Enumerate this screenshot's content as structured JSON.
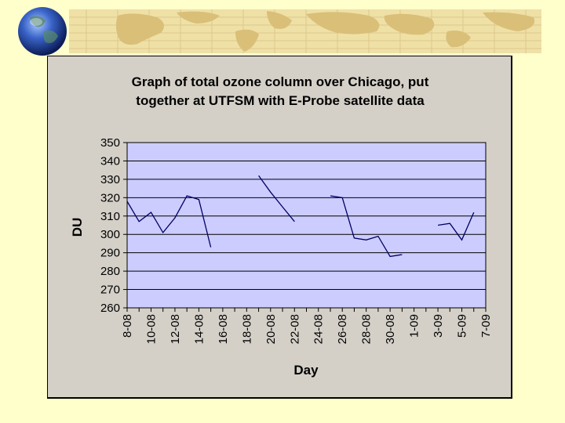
{
  "chart_data": {
    "type": "line",
    "title_lines": [
      "Graph of total ozone column over Chicago, put",
      "together at UTFSM with E-Probe satellite data"
    ],
    "xlabel": "Day",
    "ylabel": "DU",
    "ylim": [
      260,
      350
    ],
    "y_ticks": [
      260,
      270,
      280,
      290,
      300,
      310,
      320,
      330,
      340,
      350
    ],
    "x_categories": [
      "8-08",
      "9-08",
      "10-08",
      "11-08",
      "12-08",
      "13-08",
      "14-08",
      "15-08",
      "16-08",
      "17-08",
      "18-08",
      "19-08",
      "20-08",
      "21-08",
      "22-08",
      "23-08",
      "24-08",
      "25-08",
      "26-08",
      "27-08",
      "28-08",
      "29-08",
      "30-08",
      "31-08",
      "1-09",
      "2-09",
      "3-09",
      "4-09",
      "5-09",
      "6-09",
      "7-09"
    ],
    "x_tick_labels": [
      "8-08",
      "10-08",
      "12-08",
      "14-08",
      "16-08",
      "18-08",
      "20-08",
      "22-08",
      "24-08",
      "26-08",
      "28-08",
      "30-08",
      "1-09",
      "3-09",
      "5-09",
      "7-09"
    ],
    "grid": true,
    "series": [
      {
        "color": "#000066",
        "values": [
          318,
          307,
          312,
          301,
          309,
          321,
          319,
          293,
          null,
          null,
          null,
          332,
          323,
          315,
          307,
          null,
          null,
          321,
          320,
          298,
          297,
          299,
          288,
          289,
          null,
          null,
          305,
          306,
          297,
          312,
          null
        ]
      }
    ]
  },
  "colors": {
    "page_background": "#ffffcc",
    "panel_background": "#d4d0c8",
    "plot_background": "#ccccff",
    "line": "#000066",
    "banner_map": "#e6cf8a"
  },
  "icons": {
    "banner_globe": "globe-icon",
    "banner_strip": "world-map-strip"
  }
}
